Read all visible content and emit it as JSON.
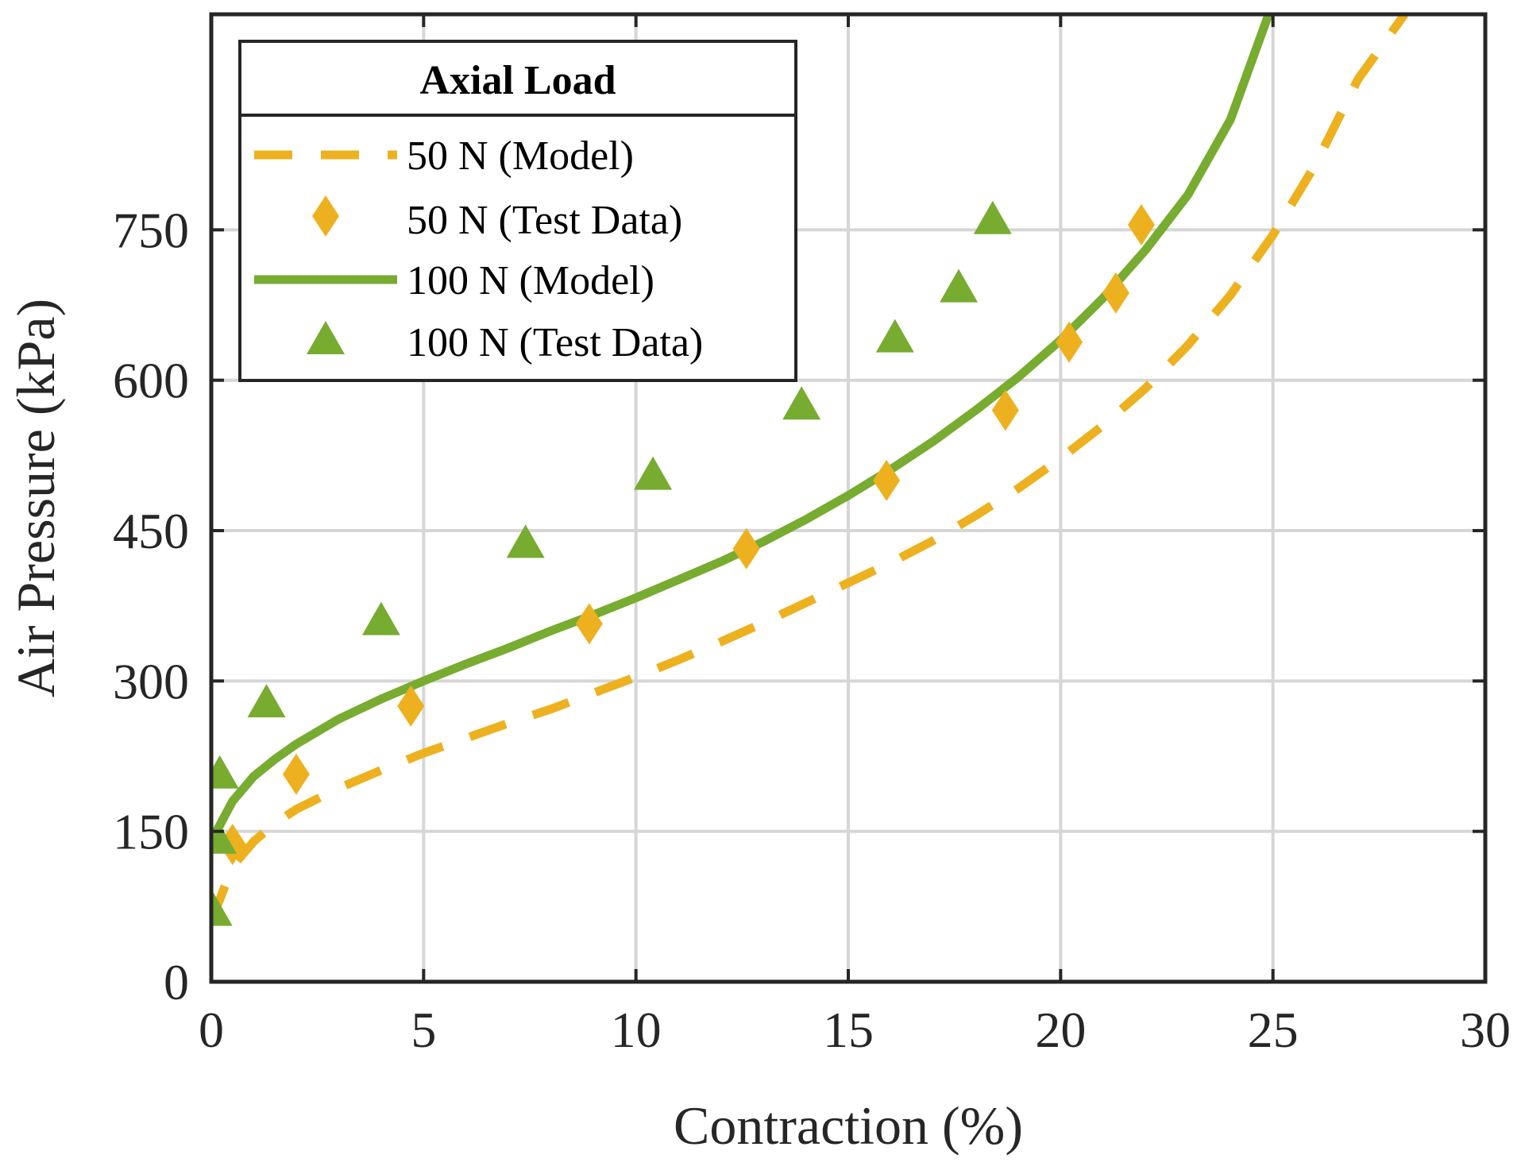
{
  "chart_data": {
    "type": "line",
    "xlabel": "Contraction (%)",
    "ylabel": "Air Pressure (kPa)",
    "xlim": [
      0,
      30
    ],
    "ylim": [
      0,
      965
    ],
    "xticks": [
      0,
      5,
      10,
      15,
      20,
      25,
      30
    ],
    "yticks": [
      0,
      150,
      300,
      450,
      600,
      750
    ],
    "grid": true,
    "legend": {
      "title": "Axial Load",
      "placement": "top-left"
    },
    "series": [
      {
        "name": "50 N (Model)",
        "kind": "dashed-line",
        "color": "#EDB120",
        "x": [
          0,
          0.5,
          1,
          1.5,
          2,
          3,
          4,
          5,
          6,
          7,
          8,
          9,
          10,
          11,
          12,
          13,
          14,
          15,
          16,
          17,
          18,
          19,
          20,
          21,
          22,
          23,
          24,
          25,
          26,
          27,
          28.1
        ],
        "y": [
          60,
          115,
          140,
          158,
          172,
          193,
          211,
          228,
          243,
          258,
          272,
          288,
          304,
          321,
          339,
          358,
          378,
          398,
          418,
          440,
          465,
          492,
          522,
          555,
          592,
          635,
          685,
          745,
          815,
          900,
          965
        ]
      },
      {
        "name": "50 N (Test Data)",
        "kind": "markers",
        "marker": "diamond",
        "color": "#EDB120",
        "x": [
          0.5,
          2.0,
          4.7,
          8.9,
          12.6,
          15.9,
          18.7,
          20.2,
          21.3,
          21.9
        ],
        "y": [
          137,
          207,
          275,
          357,
          432,
          500,
          570,
          638,
          687,
          755
        ]
      },
      {
        "name": "100 N (Model)",
        "kind": "solid-line",
        "color": "#77AC30",
        "x": [
          0,
          0.5,
          1,
          1.5,
          2,
          3,
          4,
          5,
          6,
          7,
          8,
          9,
          10,
          11,
          12,
          13,
          14,
          15,
          16,
          17,
          18,
          19,
          20,
          21,
          22,
          23,
          24,
          24.9
        ],
        "y": [
          140,
          180,
          205,
          222,
          237,
          262,
          282,
          300,
          317,
          333,
          350,
          366,
          383,
          401,
          419,
          439,
          461,
          485,
          511,
          539,
          570,
          603,
          640,
          682,
          730,
          785,
          860,
          965
        ]
      },
      {
        "name": "100 N (Test Data)",
        "kind": "markers",
        "marker": "triangle",
        "color": "#77AC30",
        "x": [
          0.05,
          0.15,
          0.2,
          1.3,
          4.0,
          7.4,
          10.4,
          13.9,
          16.1,
          17.6,
          18.4
        ],
        "y": [
          70,
          142,
          207,
          278,
          360,
          437,
          505,
          575,
          642,
          692,
          760
        ]
      }
    ]
  }
}
